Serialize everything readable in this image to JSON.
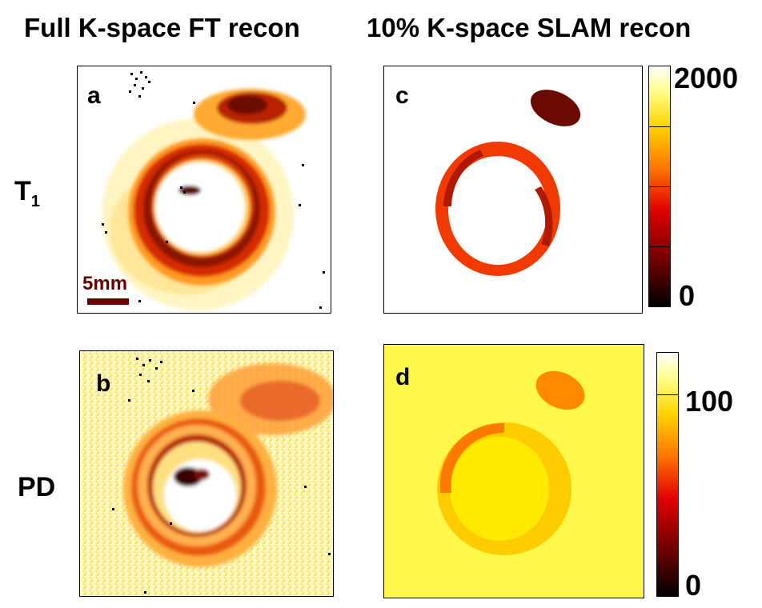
{
  "columns": {
    "left_title": "Full K-space FT recon",
    "right_title": "10% K-space SLAM recon"
  },
  "rows": {
    "t1_label_main": "T",
    "t1_label_sub": "1",
    "pd_label": "PD"
  },
  "panels": {
    "a": "a",
    "b": "b",
    "c": "c",
    "d": "d"
  },
  "scale_bar": {
    "label": "5mm"
  },
  "colorbars": {
    "t1": {
      "max_label": "2000",
      "min_label": "0"
    },
    "pd": {
      "max_label": "100",
      "min_label": "0"
    }
  },
  "colors": {
    "map_black": "#000000",
    "map_dark_red": "#5a0000",
    "map_red": "#d81e00",
    "map_orange": "#ff7a00",
    "map_yellow": "#ffe400",
    "map_pale_yellow": "#ffff9a",
    "map_white": "#ffffff",
    "scale_bar": "#6b0000"
  }
}
